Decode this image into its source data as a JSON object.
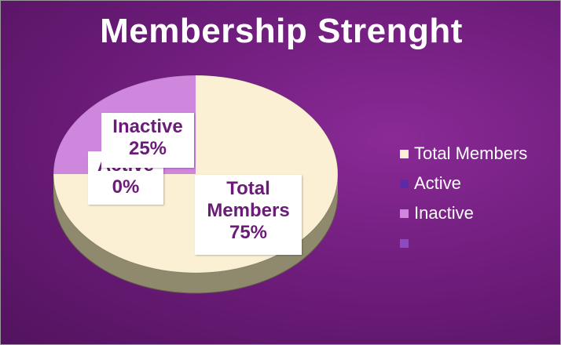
{
  "chart_data": {
    "type": "pie",
    "title": "Membership Strenght",
    "categories": [
      "Total Members",
      "Active",
      "Inactive",
      ""
    ],
    "values": [
      75,
      0,
      25,
      0
    ],
    "data_labels": [
      {
        "name": "Total Members",
        "percent": "75%"
      },
      {
        "name": "Active",
        "percent": "0%"
      },
      {
        "name": "Inactive",
        "percent": "25%"
      }
    ],
    "colors": [
      "#fbf0d4",
      "#5a2aa8",
      "#cf86dd",
      "#8a4bc2"
    ],
    "legend_position": "right",
    "style": "3d"
  }
}
